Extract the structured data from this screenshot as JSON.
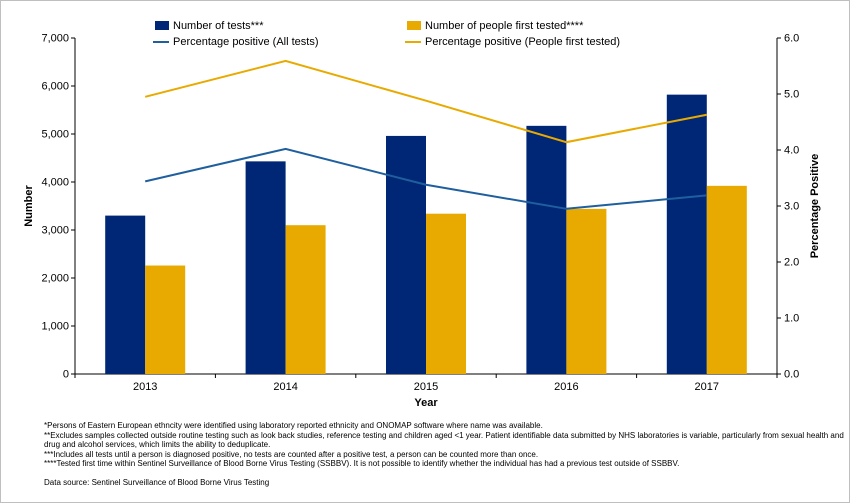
{
  "chart_data": {
    "type": "bar",
    "categories": [
      "2013",
      "2014",
      "2015",
      "2016",
      "2017"
    ],
    "xlabel": "Year",
    "ylabel": "Number",
    "y2label": "Percentage Positive",
    "ylim": [
      0,
      7000
    ],
    "y2lim": [
      0,
      6
    ],
    "yticks": [
      "0",
      "1,000",
      "2,000",
      "3,000",
      "4,000",
      "5,000",
      "6,000",
      "7,000"
    ],
    "y2ticks": [
      "0.0",
      "1.0",
      "2.0",
      "3.0",
      "4.0",
      "5.0",
      "6.0"
    ],
    "grid": false,
    "legend_position": "top",
    "series": [
      {
        "name": "Number of tests***",
        "kind": "bar",
        "axis": "left",
        "color": "#002776",
        "values": [
          3300,
          4430,
          4960,
          5170,
          5820
        ]
      },
      {
        "name": "Number of people first tested****",
        "kind": "bar",
        "axis": "left",
        "color": "#E8AA00",
        "values": [
          2260,
          3100,
          3340,
          3440,
          3920
        ]
      },
      {
        "name": "Percentage positive (All tests)",
        "kind": "line",
        "axis": "right",
        "color": "#1F5F9E",
        "values": [
          3.44,
          4.02,
          3.38,
          2.95,
          3.19
        ]
      },
      {
        "name": "Percentage positive (People first tested)",
        "kind": "line",
        "axis": "right",
        "color": "#E8AA00",
        "values": [
          4.95,
          5.59,
          4.88,
          4.14,
          4.63
        ]
      }
    ]
  },
  "footnotes": [
    "*Persons of Eastern European ethncity were identified using laboratory reported ethnicity and ONOMAP software where name was available.",
    "**Excludes samples collected outside routine testing such as look back studies, reference testing and children aged <1 year. Patient identifiable data submitted by NHS laboratories is variable, particularly from sexual health and drug and alcohol services, which limits the ability to deduplicate.",
    "***Includes all tests until a person is diagnosed positive, no tests are counted after a positive test, a person can be counted more than once.",
    "****Tested first time within Sentinel Surveillance of Blood Borne Virus Testing (SSBBV). It is not possible to identify whether the individual has had a previous test outside of SSBBV."
  ],
  "source": "Data source: Sentinel Surveillance of Blood Borne Virus Testing"
}
